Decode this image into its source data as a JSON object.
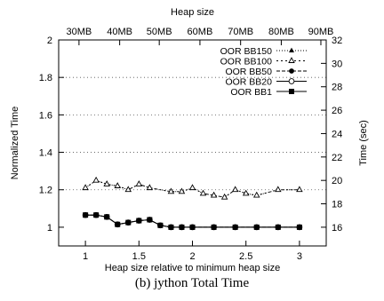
{
  "chart_data": {
    "type": "line",
    "title": "Heap size",
    "xlabel": "Heap size relative to minimum heap size",
    "ylabel": "Normalized Time",
    "y2label": "Time (sec)",
    "caption": "(b) jython Total Time",
    "xlim": [
      0.75,
      3.25
    ],
    "ylim": [
      0.9,
      2.0
    ],
    "y2lim": [
      14.4,
      32.0
    ],
    "xticks": [
      1,
      1.5,
      2,
      2.5,
      3
    ],
    "xtick_labels": [
      "1",
      "1.5",
      "2",
      "2.5",
      "3"
    ],
    "yticks": [
      1,
      1.2,
      1.4,
      1.6,
      1.8,
      2
    ],
    "ytick_labels": [
      "1",
      "1.2",
      "1.4",
      "1.6",
      "1.8",
      "2"
    ],
    "y2ticks": [
      16,
      18,
      20,
      22,
      24,
      26,
      28,
      30,
      32
    ],
    "y2tick_labels": [
      "16",
      "18",
      "20",
      "22",
      "24",
      "26",
      "28",
      "30",
      "32"
    ],
    "top_ticks": [
      0.94,
      1.32,
      1.69,
      2.07,
      2.45,
      2.83,
      3.2
    ],
    "top_tick_labels": [
      "30MB",
      "40MB",
      "50MB",
      "60MB",
      "70MB",
      "80MB",
      "90MB"
    ],
    "grid": "horizontal dotted",
    "legend_position": "top-right",
    "series": [
      {
        "name": "OOR BB150",
        "marker": "filled-triangle",
        "dash": "1,2",
        "x": [
          1.0,
          1.1,
          1.2,
          1.3,
          1.4,
          1.5,
          1.6,
          1.8,
          1.9,
          2.0,
          2.1,
          2.2,
          2.3,
          2.4,
          2.5,
          2.6,
          2.8,
          3.0
        ],
        "values": [
          1.21,
          1.25,
          1.23,
          1.22,
          1.2,
          1.23,
          1.21,
          1.19,
          1.19,
          1.21,
          1.18,
          1.17,
          1.16,
          1.2,
          1.18,
          1.17,
          1.2,
          1.2
        ]
      },
      {
        "name": "OOR BB100",
        "marker": "open-triangle",
        "dash": "2,3",
        "x": [
          1.0,
          1.1,
          1.2,
          1.3,
          1.4,
          1.5,
          1.6,
          1.8,
          1.9,
          2.0,
          2.1,
          2.2,
          2.3,
          2.4,
          2.5,
          2.6,
          2.8,
          3.0
        ],
        "values": [
          1.21,
          1.25,
          1.23,
          1.22,
          1.2,
          1.23,
          1.21,
          1.19,
          1.19,
          1.21,
          1.18,
          1.17,
          1.16,
          1.2,
          1.18,
          1.17,
          1.2,
          1.2
        ]
      },
      {
        "name": "OOR BB50",
        "marker": "filled-circle",
        "dash": "4,2",
        "x": [
          1.0,
          1.1,
          1.2,
          1.3,
          1.4,
          1.5,
          1.6,
          1.7,
          1.8,
          1.9,
          2.0,
          2.2,
          2.4,
          2.6,
          2.8,
          3.0
        ],
        "values": [
          1.065,
          1.065,
          1.055,
          1.015,
          1.025,
          1.035,
          1.04,
          1.01,
          1.0,
          1.0,
          1.0,
          1.0,
          1.0,
          1.0,
          1.0,
          1.0
        ]
      },
      {
        "name": "OOR BB20",
        "marker": "open-circle",
        "dash": "",
        "x": [
          1.0,
          1.1,
          1.2,
          1.3,
          1.4,
          1.5,
          1.6,
          1.7,
          1.8,
          1.9,
          2.0,
          2.2,
          2.4,
          2.6,
          2.8,
          3.0
        ],
        "values": [
          1.065,
          1.065,
          1.055,
          1.015,
          1.025,
          1.035,
          1.04,
          1.01,
          1.0,
          1.0,
          1.0,
          1.0,
          1.0,
          1.0,
          1.0,
          1.0
        ]
      },
      {
        "name": "OOR BB1",
        "marker": "filled-square",
        "dash": "",
        "x": [
          1.0,
          1.1,
          1.2,
          1.3,
          1.4,
          1.5,
          1.6,
          1.7,
          1.8,
          1.9,
          2.0,
          2.2,
          2.4,
          2.6,
          2.8,
          3.0
        ],
        "values": [
          1.065,
          1.065,
          1.055,
          1.015,
          1.025,
          1.035,
          1.04,
          1.01,
          1.0,
          1.0,
          1.0,
          1.0,
          1.0,
          1.0,
          1.0,
          1.0
        ]
      }
    ]
  }
}
